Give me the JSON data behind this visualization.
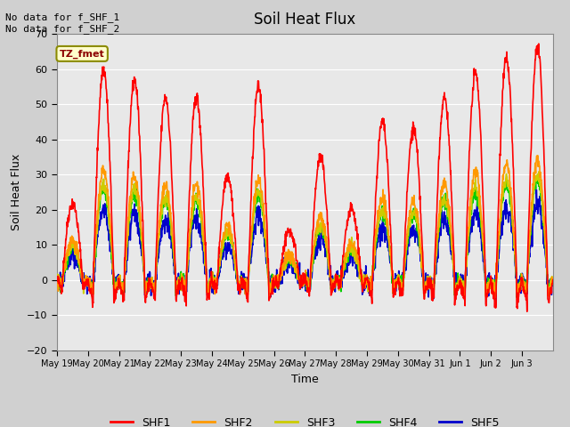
{
  "title": "Soil Heat Flux",
  "ylabel": "Soil Heat Flux",
  "xlabel": "Time",
  "ylim": [
    -20,
    70
  ],
  "plot_bg": "#e8e8e8",
  "colors": {
    "SHF1": "#ff0000",
    "SHF2": "#ff9900",
    "SHF3": "#cccc00",
    "SHF4": "#00cc00",
    "SHF5": "#0000cc"
  },
  "annotation_text": "No data for f_SHF_1\nNo data for f_SHF_2",
  "tz_label": "TZ_fmet",
  "x_tick_labels": [
    "May 19",
    "May 20",
    "May 21",
    "May 22",
    "May 23",
    "May 24",
    "May 25",
    "May 26",
    "May 27",
    "May 28",
    "May 29",
    "May 30",
    "May 31",
    "Jun 1",
    "Jun 2",
    "Jun 3"
  ],
  "yticks": [
    -20,
    -10,
    0,
    10,
    20,
    30,
    40,
    50,
    60,
    70
  ],
  "grid_color": "#ffffff",
  "linewidth": 1.2
}
